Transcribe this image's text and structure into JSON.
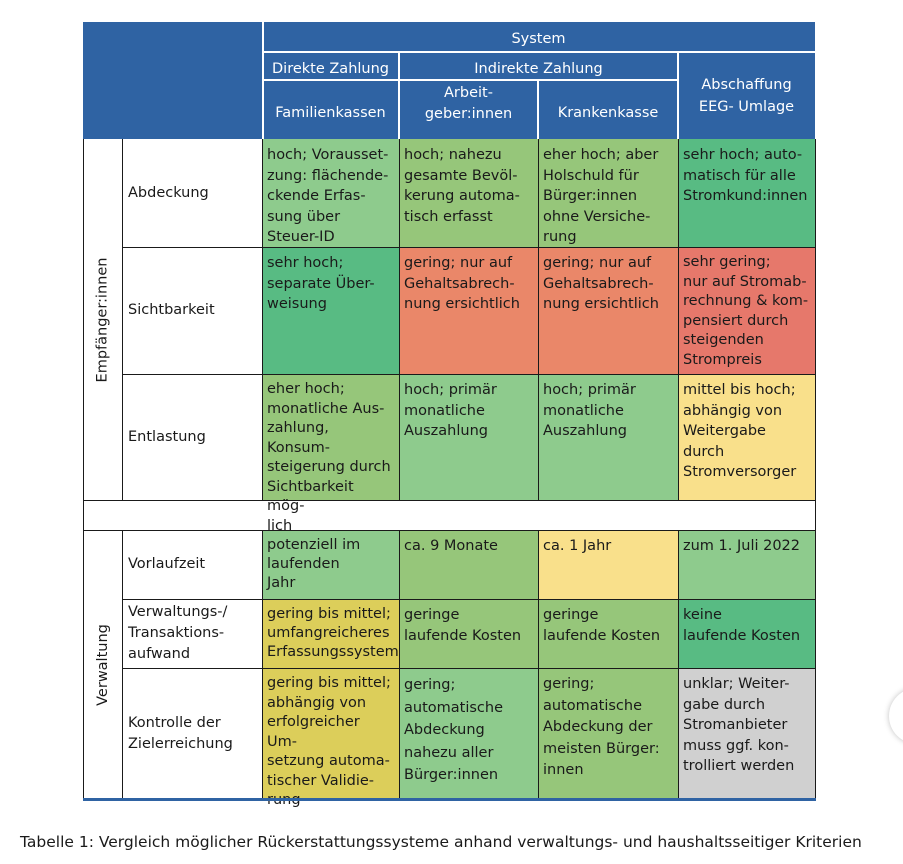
{
  "header": {
    "system": "System",
    "direkte_zahlung": "Direkte Zahlung",
    "indirekte_zahlung": "Indirekte Zahlung",
    "familienkassen": "Familienkassen",
    "arbeitgeber": "Arbeit-\ngeber:innen",
    "krankenkasse": "Krankenkasse",
    "abschaffung": "Abschaffung\nEEG- Umlage"
  },
  "groups": {
    "empfaenger": "Empfänger:innen",
    "verwaltung": "Verwaltung"
  },
  "rows": {
    "abdeckung": {
      "label": "Abdeckung",
      "familienkassen": "hoch; Vorausset-\nzung: flächende-\nckende Erfas-\nsung über\nSteuer-ID",
      "arbeitgeber": "hoch; nahezu\ngesamte Bevöl-\nkerung automa-\ntisch erfasst",
      "krankenkasse": "eher hoch; aber\nHolschuld für\nBürger:innen\nohne Versiche-\nrung",
      "abschaffung": "sehr hoch; auto-\nmatisch für alle\nStromkund:innen"
    },
    "sichtbarkeit": {
      "label": "Sichtbarkeit",
      "familienkassen": "sehr hoch;\nseparate Über-\nweisung",
      "arbeitgeber": "gering; nur auf\nGehaltsabrech-\nnung ersichtlich",
      "krankenkasse": "gering; nur auf\nGehaltsabrech-\nnung ersichtlich",
      "abschaffung": "sehr gering;\nnur auf Stromab-\nrechnung & kom-\npensiert durch\nsteigenden\nStrompreis"
    },
    "entlastung": {
      "label": "Entlastung",
      "familienkassen": "eher hoch;\nmonatliche Aus-\nzahlung, Konsum-\nsteigerung durch\nSichtbarkeit mög-\nlich",
      "arbeitgeber": "hoch; primär\nmonatliche\nAuszahlung",
      "krankenkasse": "hoch; primär\nmonatliche\nAuszahlung",
      "abschaffung": "mittel bis hoch;\nabhängig von\nWeitergabe durch\nStromversorger"
    },
    "vorlaufzeit": {
      "label": "Vorlaufzeit",
      "familienkassen": "potenziell im\nlaufenden\nJahr",
      "arbeitgeber": "ca. 9 Monate",
      "krankenkasse": "ca. 1 Jahr",
      "abschaffung": "zum 1. Juli 2022"
    },
    "verwaltungsaufwand": {
      "label": "Verwaltungs-/\nTransaktions-\naufwand",
      "familienkassen": "gering bis mittel;\numfangreicheres\nErfassungssystem",
      "arbeitgeber": "geringe\nlaufende Kosten",
      "krankenkasse": "geringe\nlaufende Kosten",
      "abschaffung": "keine\nlaufende Kosten"
    },
    "kontrolle": {
      "label": "Kontrolle der\nZielerreichung",
      "familienkassen": "gering bis mittel;\nabhängig von\nerfolgreicher Um-\nsetzung automa-\ntischer Validie-\nrung",
      "arbeitgeber": "gering;\nautomatische\nAbdeckung\nnahezu aller\nBürger:innen",
      "krankenkasse": "gering;\nautomatische\nAbdeckung der\nmeisten Bürger:\ninnen",
      "abschaffung": "unklar; Weiter-\ngabe durch\nStromanbieter\nmuss ggf. kon-\ntrolliert werden"
    }
  },
  "caption": "Tabelle 1: Vergleich möglicher Rückerstattungssysteme anhand verwaltungs- und haushaltsseitiger Kriterien",
  "colors": {
    "header_blue": "#2f63a3",
    "green_light": "#8ecb8d",
    "green_mid": "#96c67a",
    "green_dark": "#58bb83",
    "red": "#ea8769",
    "yellow": "#f9e08b",
    "olive": "#dcce5a",
    "grey": "#d0d0d0"
  }
}
